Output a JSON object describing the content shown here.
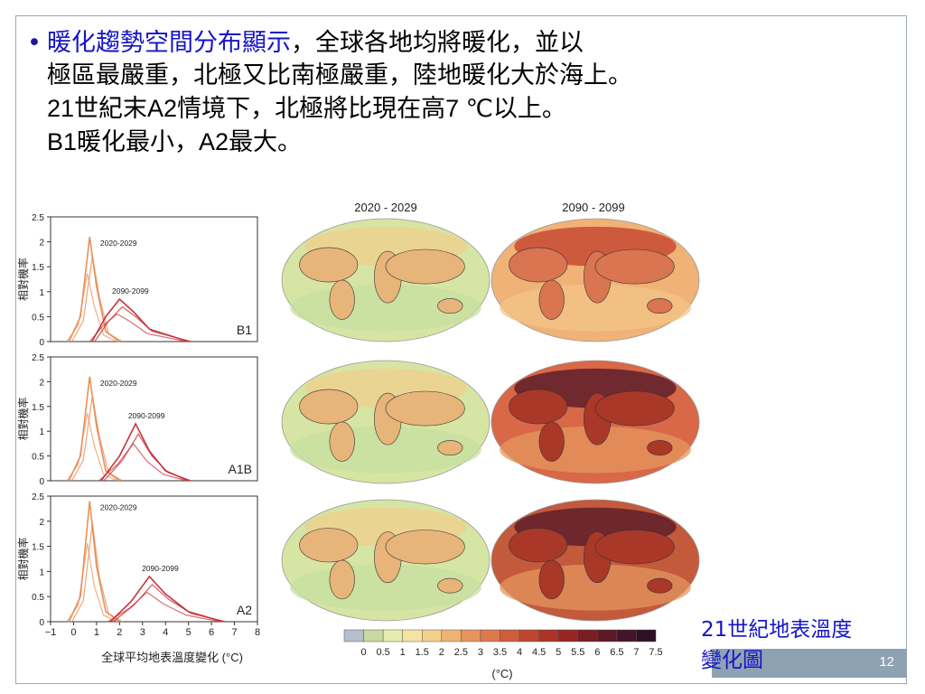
{
  "slide": {
    "bullet_symbol": "•",
    "line1_highlight": "暖化趨勢空間分布顯示",
    "line1_rest": "，全球各地均將暖化，並以",
    "line2": "極區最嚴重，北極又比南極嚴重，陸地暖化大於海上。",
    "line3_prefix": "21",
    "line3_a": "世紀末",
    "line3_b": "A2",
    "line3_c": "情境下，北極將比現在高",
    "line3_d": "7 ℃",
    "line3_e": "以上。",
    "line4_prefix": "B1",
    "line4_a": "暖化最小，",
    "line4_b": "A2",
    "line4_c": "最大。",
    "caption_line1": "21世紀地表溫度",
    "caption_line2": "變化圖",
    "page_number": "12"
  },
  "chart_data": [
    {
      "type": "line",
      "panel": "B1",
      "ylabel": "相對機率",
      "ylim": [
        0,
        2.5
      ],
      "yticks": [
        "0",
        "0.5",
        "1",
        "1.5",
        "2",
        "2.5"
      ],
      "annotations": [
        "2020-2029",
        "2090-2099"
      ],
      "series": [
        {
          "period": "2020-2029",
          "x": [
            -0.2,
            0.3,
            0.7,
            1.0,
            1.4,
            2.0
          ],
          "y": [
            0,
            0.5,
            2.1,
            1.1,
            0.2,
            0
          ]
        },
        {
          "period": "2090-2099",
          "x": [
            0.8,
            1.4,
            2.0,
            2.6,
            3.3,
            5.0
          ],
          "y": [
            0,
            0.5,
            0.85,
            0.6,
            0.25,
            0
          ]
        }
      ]
    },
    {
      "type": "line",
      "panel": "A1B",
      "ylabel": "相對機率",
      "ylim": [
        0,
        2.5
      ],
      "yticks": [
        "0",
        "0.5",
        "1",
        "1.5",
        "2",
        "2.5"
      ],
      "annotations": [
        "2020-2029",
        "2090-2099"
      ],
      "series": [
        {
          "period": "2020-2029",
          "x": [
            -0.2,
            0.3,
            0.7,
            1.0,
            1.4,
            2.0
          ],
          "y": [
            0,
            0.5,
            2.1,
            1.1,
            0.2,
            0
          ]
        },
        {
          "period": "2090-2099",
          "x": [
            1.2,
            2.0,
            2.7,
            3.3,
            4.0,
            5.0
          ],
          "y": [
            0,
            0.5,
            1.15,
            0.6,
            0.2,
            0
          ]
        }
      ]
    },
    {
      "type": "line",
      "panel": "A2",
      "ylabel": "相對機率",
      "xlabel": "全球平均地表溫度變化 (°C)",
      "ylim": [
        0,
        2.5
      ],
      "xlim": [
        -1,
        8
      ],
      "xticks": [
        "−1",
        "0",
        "1",
        "2",
        "3",
        "4",
        "5",
        "6",
        "7",
        "8"
      ],
      "yticks": [
        "0",
        "0.5",
        "1",
        "1.5",
        "2",
        "2.5"
      ],
      "annotations": [
        "2020-2029",
        "2090-2099"
      ],
      "series": [
        {
          "period": "2020-2029",
          "x": [
            -0.2,
            0.3,
            0.7,
            1.0,
            1.4,
            2.0
          ],
          "y": [
            0,
            0.5,
            2.4,
            1.1,
            0.2,
            0
          ]
        },
        {
          "period": "2090-2099",
          "x": [
            1.6,
            2.5,
            3.3,
            4.0,
            5.0,
            6.5
          ],
          "y": [
            0,
            0.4,
            0.9,
            0.55,
            0.2,
            0
          ]
        }
      ]
    },
    {
      "type": "heatmap",
      "titles": [
        "2020 - 2029",
        "2090 - 2099"
      ],
      "rows": [
        "B1",
        "A1B",
        "A2"
      ],
      "colorbar_ticks": [
        "0",
        "0.5",
        "1",
        "1.5",
        "2",
        "2.5",
        "3",
        "3.5",
        "4",
        "4.5",
        "5",
        "5.5",
        "6",
        "6.5",
        "7",
        "7.5"
      ],
      "colorbar_colors": [
        "#b4bfd0",
        "#c9d9a0",
        "#e6ecb0",
        "#f4e3a2",
        "#f3cf8c",
        "#efb277",
        "#e7955f",
        "#dd7a4c",
        "#cf5e3b",
        "#c0452f",
        "#ad3327",
        "#952622",
        "#7a1d22",
        "#5e1827",
        "#46142a",
        "#2f1027"
      ],
      "colorbar_label": "(°C)"
    }
  ]
}
